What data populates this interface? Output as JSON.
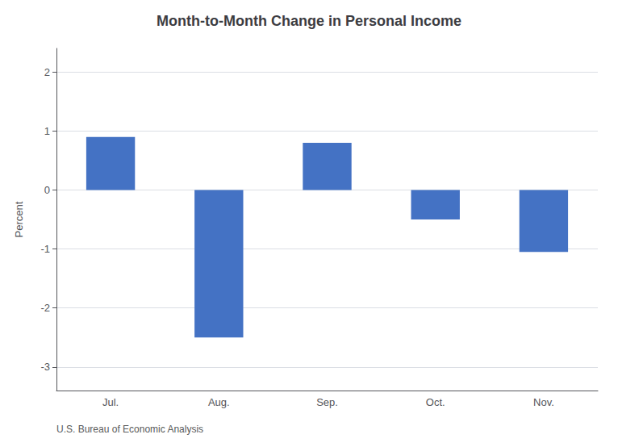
{
  "chart_data": {
    "type": "bar",
    "title": "Month-to-Month Change in Personal Income",
    "categories": [
      "Jul.",
      "Aug.",
      "Sep.",
      "Oct.",
      "Nov."
    ],
    "values": [
      0.9,
      -2.5,
      0.8,
      -0.5,
      -1.05
    ],
    "color": "#4472C4",
    "ylabel": "Percent",
    "ylim": [
      -3.4,
      2.4
    ],
    "yticks": [
      -3,
      -2,
      -1,
      0,
      1,
      2
    ],
    "grid": true,
    "annotation": "U.S. Bureau of Economic Analysis"
  }
}
